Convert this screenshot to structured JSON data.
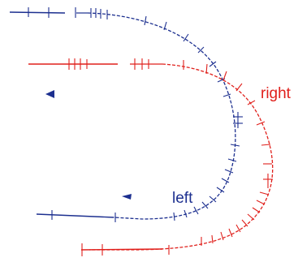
{
  "labels": {
    "right": "right",
    "left": "left"
  },
  "colors": {
    "right_path": "#e0201c",
    "left_path": "#1c2f8f",
    "background": "#ffffff"
  },
  "icons": {
    "left_arrow_upper": "left-arrow-icon",
    "left_arrow_lower": "left-arrow-icon"
  }
}
